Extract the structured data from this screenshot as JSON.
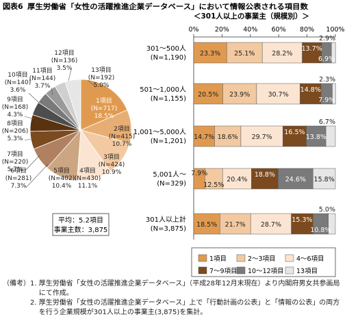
{
  "header": {
    "fig_label": "図表6",
    "title": "厚生労働省「女性の活躍推進企業データベース」において情報公表される項目数",
    "subtitle": "＜301人以上の事業主（規模別）＞"
  },
  "colors": {
    "c1": "#E09A50",
    "c2": "#F2C9A0",
    "c3": "#FBE5D2",
    "c4": "#7B4A1E",
    "c5": "#7A7A7A",
    "c6": "#E6E6E6",
    "pie5": "#CCA582",
    "pie6": "#B08060",
    "pie8": "#5A3210",
    "pie9": "#4D4D4D",
    "pie10": "#9A9A9A",
    "pie11": "#B8B8B8",
    "pie12": "#CFCFCF"
  },
  "chart_data": [
    {
      "type": "pie",
      "labels": [
        "1項目",
        "2項目",
        "3項目",
        "4項目",
        "5項目",
        "6項目",
        "7項目",
        "8項目",
        "9項目",
        "10項目",
        "11項目",
        "12項目",
        "13項目"
      ],
      "counts": [
        "(N=717)",
        "(N=415)",
        "(N=424)",
        "(N=430)",
        "(N=402)",
        "(N=281)",
        "(N=220)",
        "(N=206)",
        "(N=168)",
        "(N=140)",
        "(N=144)",
        "(N=136)",
        "(N=192)"
      ],
      "values": [
        18.5,
        10.7,
        10.9,
        11.1,
        10.4,
        7.3,
        5.7,
        5.3,
        4.3,
        3.6,
        3.7,
        3.5,
        5.0
      ],
      "value_labels": [
        "18.5%",
        "10.7%",
        "10.9%",
        "11.1%",
        "10.4%",
        "7.3%",
        "5.7%",
        "5.3%",
        "4.3%",
        "3.6%",
        "3.7%",
        "3.5%",
        "5.0%"
      ],
      "colors": [
        "#E09A50",
        "#E7AE74",
        "#F2C9A0",
        "#FBE5D2",
        "#CCA582",
        "#B08060",
        "#7B4A1E",
        "#5A3210",
        "#4D4D4D",
        "#7A7A7A",
        "#9A9A9A",
        "#CFCFCF",
        "#E6E6E6"
      ],
      "summary": [
        "平均：5.2項目",
        "事業主数：3,875"
      ]
    },
    {
      "type": "bar",
      "orientation": "horizontal",
      "stacked": true,
      "categories": [
        "301～500人",
        "501～1,000人",
        "1,001～5,000人",
        "5,001人～",
        "301人以上計"
      ],
      "category_counts": [
        "(N=1,190)",
        "(N=1,155)",
        "(N=1,201)",
        "(N=329)",
        "(N=3,875)"
      ],
      "xlim": [
        0,
        100
      ],
      "x_ticks": [
        "0%",
        "20%",
        "40%",
        "60%",
        "80%",
        "100%"
      ],
      "series": [
        {
          "name": "1項目",
          "values": [
            23.3,
            20.5,
            14.7,
            7.9,
            18.5
          ],
          "labels": [
            "23.3%",
            "20.5%",
            "14.7%",
            "7.9%",
            "18.5%"
          ]
        },
        {
          "name": "2～3項目",
          "values": [
            25.1,
            23.9,
            18.6,
            12.5,
            21.7
          ],
          "labels": [
            "25.1%",
            "23.9%",
            "18.6%",
            "12.5%",
            "21.7%"
          ]
        },
        {
          "name": "4～6項目",
          "values": [
            28.2,
            30.7,
            29.7,
            20.4,
            28.7
          ],
          "labels": [
            "28.2%",
            "30.7%",
            "29.7%",
            "20.4%",
            "28.7%"
          ]
        },
        {
          "name": "7～9項目",
          "values": [
            13.7,
            14.8,
            16.5,
            18.8,
            15.3
          ],
          "labels": [
            "13.7%",
            "14.8%",
            "16.5%",
            "18.8%",
            "15.3%"
          ]
        },
        {
          "name": "10～12項目",
          "values": [
            6.9,
            7.9,
            13.8,
            24.6,
            10.8
          ],
          "labels": [
            "6.9%",
            "7.9%",
            "13.8%",
            "24.6%",
            "10.8%"
          ]
        },
        {
          "name": "13項目",
          "values": [
            2.9,
            2.3,
            6.7,
            15.8,
            5.0
          ],
          "labels": [
            "2.9%",
            "2.3%",
            "6.7%",
            "15.8%",
            "5.0%"
          ]
        }
      ],
      "legend": "bottom",
      "grid": false
    }
  ],
  "notes": [
    {
      "prefix": "（備考）1. ",
      "text": "厚生労働省「女性の活躍推進企業データベース」（平成28年12月末現在）より内閣府男女共参画局にて作成。"
    },
    {
      "prefix": "　　　　2. ",
      "text": "厚生労働省「女性の活躍推進企業データベース」上で「行動計画の公表」と「情報の公表」の両方を行う企業規模が301人以上の事業主(3,875)を集計。"
    }
  ]
}
